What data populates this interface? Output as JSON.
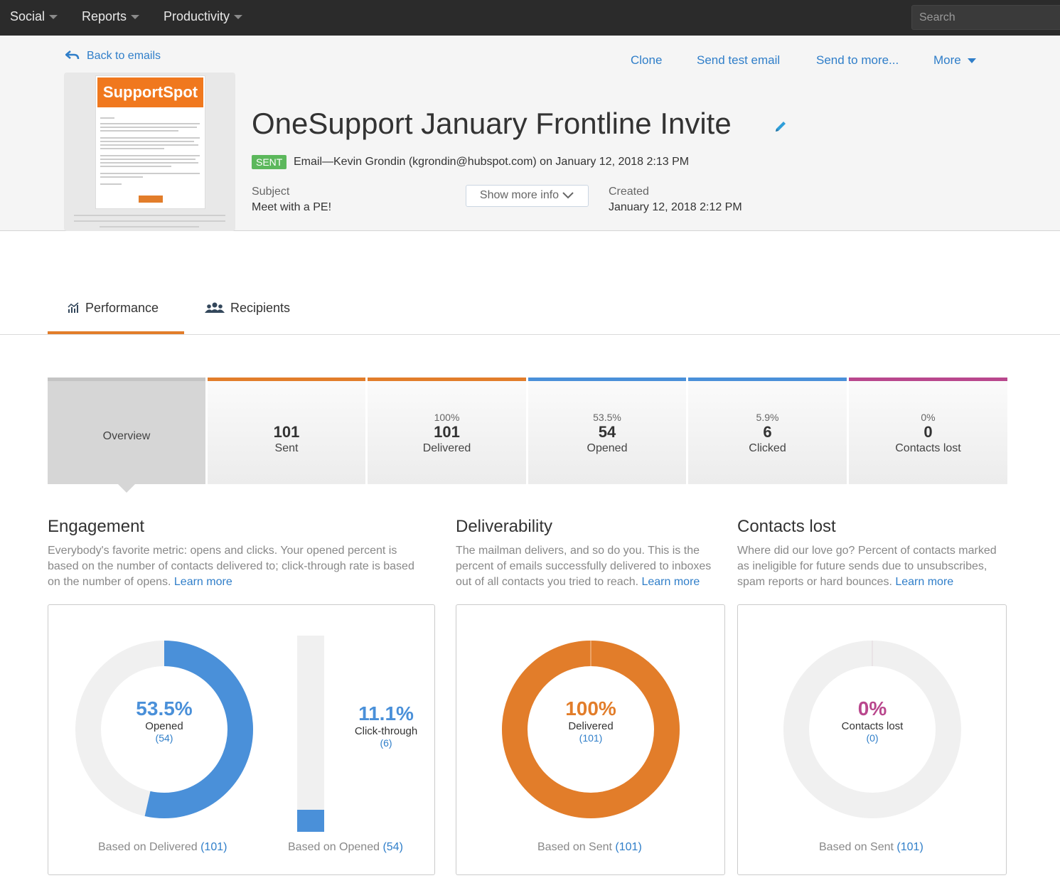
{
  "nav": {
    "items": [
      "Social",
      "Reports",
      "Productivity"
    ],
    "search_placeholder": "Search"
  },
  "header": {
    "back_label": "Back to emails",
    "actions": {
      "clone": "Clone",
      "send_test": "Send test email",
      "send_more": "Send to more...",
      "more": "More"
    },
    "thumbnail_logo": "SupportSpot",
    "title": "OneSupport January Frontline Invite",
    "status_badge": "SENT",
    "sent_line": "Email—Kevin Grondin (kgrondin@hubspot.com) on January 12, 2018 2:13 PM",
    "subject_label": "Subject",
    "subject_value": "Meet with a PE!",
    "created_label": "Created",
    "created_value": "January 12, 2018 2:12 PM",
    "show_more": "Show more info"
  },
  "tabs": {
    "performance": "Performance",
    "recipients": "Recipients"
  },
  "stats": {
    "overview": "Overview",
    "sent": {
      "value": "101",
      "label": "Sent",
      "color": "#e27d2a"
    },
    "delivered": {
      "pct": "100%",
      "value": "101",
      "label": "Delivered",
      "color": "#e27d2a"
    },
    "opened": {
      "pct": "53.5%",
      "value": "54",
      "label": "Opened",
      "color": "#4a90d9"
    },
    "clicked": {
      "pct": "5.9%",
      "value": "6",
      "label": "Clicked",
      "color": "#4a90d9"
    },
    "lost": {
      "pct": "0%",
      "value": "0",
      "label": "Contacts lost",
      "color": "#b9478d"
    }
  },
  "engagement": {
    "title": "Engagement",
    "desc_1": "Everybody's favorite metric: opens and clicks. Your opened percent is",
    "desc_2": "based on the number of contacts delivered to; click-through rate is based",
    "desc_3": "on the number of opens.",
    "learn_more": "Learn more",
    "opened": {
      "pct": "53.5%",
      "fraction": 0.535,
      "label": "Opened",
      "count": "(54)"
    },
    "click_through": {
      "pct": "11.1%",
      "fraction": 0.111,
      "label": "Click-through",
      "count": "(6)"
    },
    "based_delivered": "Based on Delivered",
    "based_delivered_count": "(101)",
    "based_opened": "Based on Opened",
    "based_opened_count": "(54)"
  },
  "deliverability": {
    "title": "Deliverability",
    "desc_1": "The mailman delivers, and so do you. This is the",
    "desc_2": "percent of emails successfully delivered to inboxes",
    "desc_3": "out of all contacts you tried to reach.",
    "learn_more": "Learn more",
    "delivered": {
      "pct": "100%",
      "fraction": 1.0,
      "label": "Delivered",
      "count": "(101)"
    },
    "based": "Based on Sent",
    "based_count": "(101)"
  },
  "contacts_lost": {
    "title": "Contacts lost",
    "desc_1": "Where did our love go? Percent of contacts marked",
    "desc_2": "as ineligible for future sends due to unsubscribes,",
    "desc_3": "spam reports or hard bounces.",
    "learn_more": "Learn more",
    "lost": {
      "pct": "0%",
      "fraction": 0.0,
      "label": "Contacts lost",
      "count": "(0)"
    },
    "based": "Based on Sent",
    "based_count": "(101)"
  },
  "colors": {
    "blue": "#4a90d9",
    "orange": "#e27d2a",
    "magenta": "#b9478d",
    "track": "#f0f0f0",
    "link": "#2f7ec9"
  }
}
